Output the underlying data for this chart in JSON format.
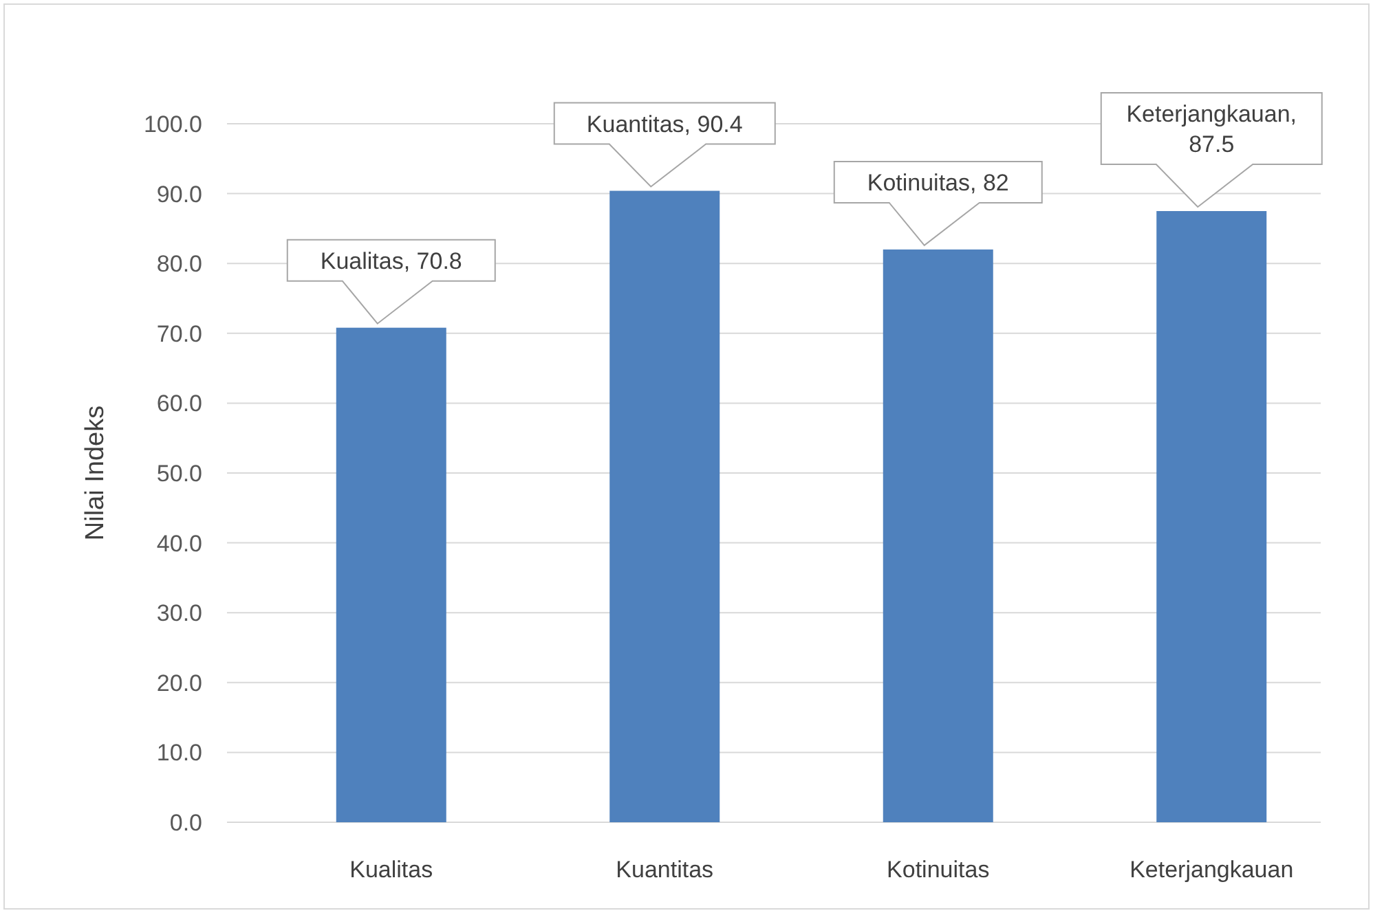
{
  "chart_data": {
    "type": "bar",
    "ylabel": "Nilai Indeks",
    "categories": [
      "Kualitas",
      "Kuantitas",
      "Kotinuitas",
      "Keterjangkauan"
    ],
    "values": [
      70.8,
      90.4,
      82,
      87.5
    ],
    "color": "#4f81bd",
    "ylim": [
      0,
      100
    ],
    "yticks": [
      {
        "value": 0,
        "label": "0.0"
      },
      {
        "value": 10,
        "label": "10.0"
      },
      {
        "value": 20,
        "label": "20.0"
      },
      {
        "value": 30,
        "label": "30.0"
      },
      {
        "value": 40,
        "label": "40.0"
      },
      {
        "value": 50,
        "label": "50.0"
      },
      {
        "value": 60,
        "label": "60.0"
      },
      {
        "value": 70,
        "label": "70.0"
      },
      {
        "value": 80,
        "label": "80.0"
      },
      {
        "value": 90,
        "label": "90.0"
      },
      {
        "value": 100,
        "label": "100.0"
      }
    ],
    "grid": true,
    "value_labels": [
      "Kualitas, 70.8",
      "Kuantitas, 90.4",
      "Kotinuitas, 82",
      "Keterjangkauan, 87.5"
    ]
  }
}
